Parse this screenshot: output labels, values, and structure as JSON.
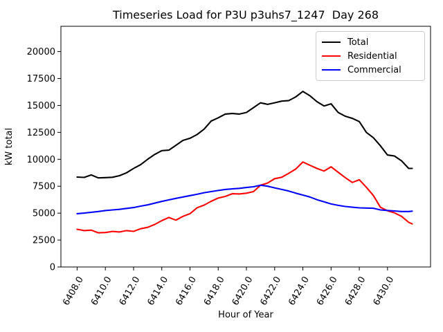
{
  "title": "Timeseries Load for P3U p3uhs7_1247  Day 268",
  "chart_data": {
    "type": "line",
    "title": "Timeseries Load for P3U p3uhs7_1247  Day 268",
    "xlabel": "Hour of Year",
    "ylabel": "kW total",
    "grid": false,
    "legend_position": "upper right",
    "xlim": [
      6406.85,
      6433.05
    ],
    "ylim": [
      0,
      22350
    ],
    "xticks": [
      6408,
      6410,
      6412,
      6414,
      6416,
      6418,
      6420,
      6422,
      6424,
      6426,
      6428,
      6430
    ],
    "xtick_labels": [
      "6408.0",
      "6410.0",
      "6412.0",
      "6414.0",
      "6416.0",
      "6418.0",
      "6420.0",
      "6422.0",
      "6424.0",
      "6426.0",
      "6428.0",
      "6430.0"
    ],
    "yticks": [
      0,
      2500,
      5000,
      7500,
      10000,
      12500,
      15000,
      17500,
      20000
    ],
    "ytick_labels": [
      "0",
      "2500",
      "5000",
      "7500",
      "10000",
      "12500",
      "15000",
      "17500",
      "20000"
    ],
    "x": [
      6408.0,
      6408.5,
      6409.0,
      6409.5,
      6410.0,
      6410.5,
      6411.0,
      6411.5,
      6412.0,
      6412.5,
      6413.0,
      6413.5,
      6414.0,
      6414.5,
      6415.0,
      6415.5,
      6416.0,
      6416.5,
      6417.0,
      6417.5,
      6418.0,
      6418.5,
      6419.0,
      6419.5,
      6420.0,
      6420.5,
      6421.0,
      6421.5,
      6422.0,
      6422.5,
      6423.0,
      6423.5,
      6424.0,
      6424.5,
      6425.0,
      6425.5,
      6426.0,
      6426.5,
      6427.0,
      6427.5,
      6428.0,
      6428.5,
      6429.0,
      6429.5,
      6430.0,
      6430.5,
      6431.0,
      6431.5,
      6431.75
    ],
    "series": [
      {
        "name": "Total",
        "color": "#000000",
        "values": [
          8350,
          8320,
          8550,
          8270,
          8300,
          8330,
          8480,
          8750,
          9150,
          9500,
          10000,
          10450,
          10800,
          10850,
          11300,
          11750,
          11950,
          12300,
          12800,
          13550,
          13850,
          14200,
          14250,
          14200,
          14350,
          14800,
          15250,
          15100,
          15250,
          15400,
          15450,
          15800,
          16300,
          15900,
          15350,
          14950,
          15150,
          14350,
          14000,
          13800,
          13500,
          12500,
          12000,
          11250,
          10400,
          10300,
          9850,
          9150,
          9150
        ]
      },
      {
        "name": "Residential",
        "color": "#ff0000",
        "values": [
          3500,
          3380,
          3420,
          3170,
          3200,
          3300,
          3250,
          3380,
          3310,
          3550,
          3680,
          3950,
          4300,
          4600,
          4350,
          4700,
          4950,
          5500,
          5750,
          6100,
          6400,
          6550,
          6800,
          6780,
          6850,
          7000,
          7590,
          7800,
          8200,
          8330,
          8700,
          9100,
          9750,
          9450,
          9150,
          8910,
          9300,
          8800,
          8300,
          7850,
          8100,
          7400,
          6630,
          5540,
          5220,
          5020,
          4700,
          4150,
          4000
        ]
      },
      {
        "name": "Commercial",
        "color": "#0000ff",
        "values": [
          4950,
          5000,
          5080,
          5150,
          5240,
          5300,
          5350,
          5440,
          5520,
          5650,
          5770,
          5930,
          6090,
          6230,
          6370,
          6500,
          6630,
          6750,
          6900,
          7000,
          7100,
          7200,
          7250,
          7300,
          7380,
          7450,
          7590,
          7500,
          7350,
          7200,
          7050,
          6850,
          6680,
          6500,
          6250,
          6050,
          5850,
          5720,
          5620,
          5550,
          5490,
          5470,
          5450,
          5300,
          5250,
          5200,
          5150,
          5150,
          5180
        ]
      }
    ]
  }
}
